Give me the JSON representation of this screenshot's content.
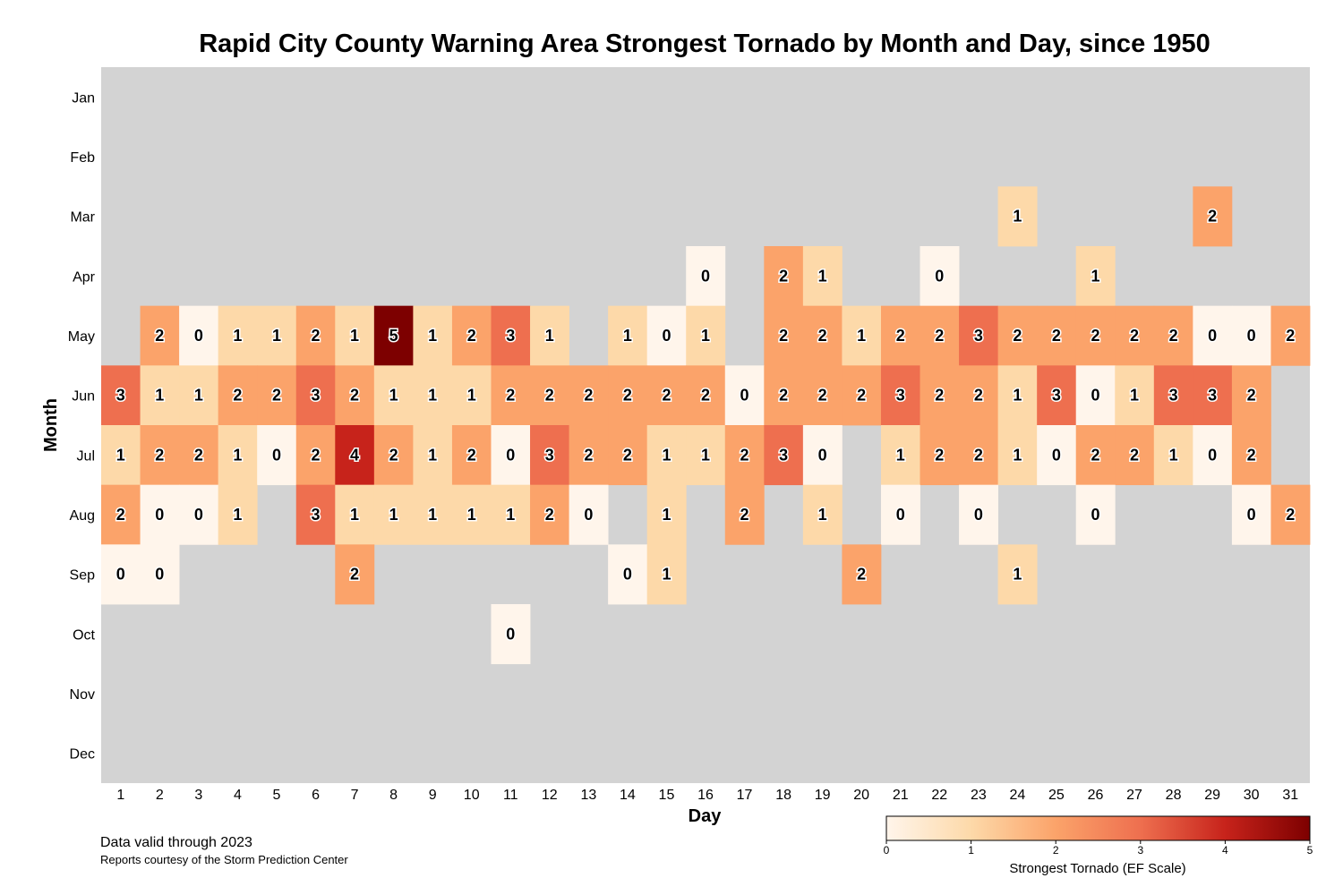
{
  "chart_data": {
    "type": "heatmap",
    "title": "Rapid City County Warning Area Strongest Tornado by Month and Day, since 1950",
    "xlabel": "Day",
    "ylabel": "Month",
    "x": [
      "1",
      "2",
      "3",
      "4",
      "5",
      "6",
      "7",
      "8",
      "9",
      "10",
      "11",
      "12",
      "13",
      "14",
      "15",
      "16",
      "17",
      "18",
      "19",
      "20",
      "21",
      "22",
      "23",
      "24",
      "25",
      "26",
      "27",
      "28",
      "29",
      "30",
      "31"
    ],
    "y": [
      "Jan",
      "Feb",
      "Mar",
      "Apr",
      "May",
      "Jun",
      "Jul",
      "Aug",
      "Sep",
      "Oct",
      "Nov",
      "Dec"
    ],
    "values": [
      [
        null,
        null,
        null,
        null,
        null,
        null,
        null,
        null,
        null,
        null,
        null,
        null,
        null,
        null,
        null,
        null,
        null,
        null,
        null,
        null,
        null,
        null,
        null,
        null,
        null,
        null,
        null,
        null,
        null,
        null,
        null
      ],
      [
        null,
        null,
        null,
        null,
        null,
        null,
        null,
        null,
        null,
        null,
        null,
        null,
        null,
        null,
        null,
        null,
        null,
        null,
        null,
        null,
        null,
        null,
        null,
        null,
        null,
        null,
        null,
        null,
        null,
        null,
        null
      ],
      [
        null,
        null,
        null,
        null,
        null,
        null,
        null,
        null,
        null,
        null,
        null,
        null,
        null,
        null,
        null,
        null,
        null,
        null,
        null,
        null,
        null,
        null,
        null,
        1,
        null,
        null,
        null,
        null,
        2,
        null,
        null
      ],
      [
        null,
        null,
        null,
        null,
        null,
        null,
        null,
        null,
        null,
        null,
        null,
        null,
        null,
        null,
        null,
        0,
        null,
        2,
        1,
        null,
        null,
        0,
        null,
        null,
        null,
        1,
        null,
        null,
        null,
        null,
        null
      ],
      [
        null,
        2,
        0,
        1,
        1,
        2,
        1,
        5,
        1,
        2,
        3,
        1,
        null,
        1,
        0,
        1,
        null,
        2,
        2,
        1,
        2,
        2,
        3,
        2,
        2,
        2,
        2,
        2,
        0,
        0,
        2
      ],
      [
        3,
        1,
        1,
        2,
        2,
        3,
        2,
        1,
        1,
        1,
        2,
        2,
        2,
        2,
        2,
        2,
        0,
        2,
        2,
        2,
        3,
        2,
        2,
        1,
        3,
        0,
        1,
        3,
        3,
        2,
        null
      ],
      [
        1,
        2,
        2,
        1,
        0,
        2,
        4,
        2,
        1,
        2,
        0,
        3,
        2,
        2,
        1,
        1,
        2,
        3,
        0,
        null,
        1,
        2,
        2,
        1,
        0,
        2,
        2,
        1,
        0,
        2,
        null
      ],
      [
        2,
        0,
        0,
        1,
        null,
        3,
        1,
        1,
        1,
        1,
        1,
        2,
        0,
        null,
        1,
        null,
        2,
        null,
        1,
        null,
        0,
        null,
        0,
        null,
        null,
        0,
        null,
        null,
        null,
        0,
        2
      ],
      [
        0,
        0,
        null,
        null,
        null,
        null,
        2,
        null,
        null,
        null,
        null,
        null,
        null,
        0,
        1,
        null,
        null,
        null,
        null,
        2,
        null,
        null,
        null,
        1,
        null,
        null,
        null,
        null,
        null,
        null,
        null
      ],
      [
        null,
        null,
        null,
        null,
        null,
        null,
        null,
        null,
        null,
        null,
        0,
        null,
        null,
        null,
        null,
        null,
        null,
        null,
        null,
        null,
        null,
        null,
        null,
        null,
        null,
        null,
        null,
        null,
        null,
        null,
        null
      ],
      [
        null,
        null,
        null,
        null,
        null,
        null,
        null,
        null,
        null,
        null,
        null,
        null,
        null,
        null,
        null,
        null,
        null,
        null,
        null,
        null,
        null,
        null,
        null,
        null,
        null,
        null,
        null,
        null,
        null,
        null,
        null
      ],
      [
        null,
        null,
        null,
        null,
        null,
        null,
        null,
        null,
        null,
        null,
        null,
        null,
        null,
        null,
        null,
        null,
        null,
        null,
        null,
        null,
        null,
        null,
        null,
        null,
        null,
        null,
        null,
        null,
        null,
        null,
        null
      ]
    ],
    "colorbar": {
      "label": "Strongest Tornado (EF Scale)",
      "min": 0,
      "max": 5,
      "ticks": [
        "0",
        "1",
        "2",
        "3",
        "4",
        "5"
      ],
      "colors": [
        "#fff5eb",
        "#fdd9a9",
        "#fba36a",
        "#ee6f4f",
        "#c7231b",
        "#7d0000"
      ]
    },
    "background_color": "#d3d3d3",
    "grid": false,
    "legend": "bottom-right"
  },
  "footer": {
    "note": "Data valid through 2023",
    "credit": "Reports courtesy of the Storm Prediction Center"
  }
}
